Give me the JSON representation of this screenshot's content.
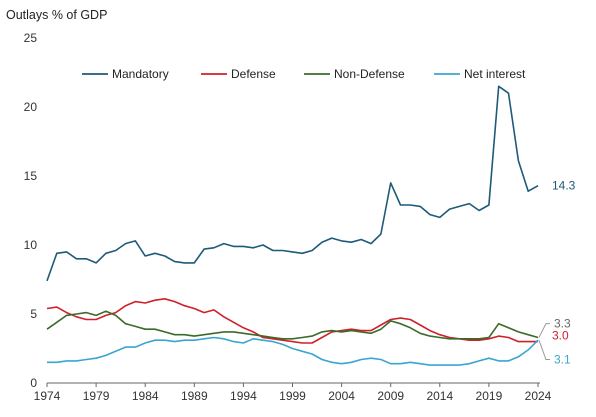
{
  "chart_data": {
    "type": "line",
    "title": "Outlays % of GDP",
    "xlabel": "",
    "ylabel": "",
    "xlim": [
      1974,
      2024
    ],
    "ylim": [
      0,
      25
    ],
    "x_ticks": [
      1974,
      1979,
      1984,
      1989,
      1994,
      1999,
      2004,
      2009,
      2014,
      2019,
      2024
    ],
    "y_ticks": [
      0,
      5,
      10,
      15,
      20,
      25
    ],
    "grid": false,
    "legend_position": "top",
    "x": [
      1974,
      1975,
      1976,
      1977,
      1978,
      1979,
      1980,
      1981,
      1982,
      1983,
      1984,
      1985,
      1986,
      1987,
      1988,
      1989,
      1990,
      1991,
      1992,
      1993,
      1994,
      1995,
      1996,
      1997,
      1998,
      1999,
      2000,
      2001,
      2002,
      2003,
      2004,
      2005,
      2006,
      2007,
      2008,
      2009,
      2010,
      2011,
      2012,
      2013,
      2014,
      2015,
      2016,
      2017,
      2018,
      2019,
      2020,
      2021,
      2022,
      2023,
      2024
    ],
    "series": [
      {
        "name": "Mandatory",
        "color": "#1f5a7a",
        "end_label": "14.3",
        "values": [
          7.4,
          9.4,
          9.5,
          9.0,
          9.0,
          8.7,
          9.4,
          9.6,
          10.1,
          10.3,
          9.2,
          9.4,
          9.2,
          8.8,
          8.7,
          8.7,
          9.7,
          9.8,
          10.1,
          9.9,
          9.9,
          9.8,
          10.0,
          9.6,
          9.6,
          9.5,
          9.4,
          9.6,
          10.2,
          10.5,
          10.3,
          10.2,
          10.4,
          10.1,
          10.8,
          14.5,
          12.9,
          12.9,
          12.8,
          12.2,
          12.0,
          12.6,
          12.8,
          13.0,
          12.5,
          12.9,
          21.5,
          21.0,
          16.1,
          13.9,
          14.3
        ]
      },
      {
        "name": "Defense",
        "color": "#d0202a",
        "end_label": "3.0",
        "values": [
          5.4,
          5.5,
          5.1,
          4.8,
          4.6,
          4.6,
          4.9,
          5.1,
          5.6,
          5.9,
          5.8,
          6.0,
          6.1,
          5.9,
          5.6,
          5.4,
          5.1,
          5.3,
          4.8,
          4.4,
          4.0,
          3.7,
          3.3,
          3.2,
          3.1,
          3.0,
          2.9,
          2.9,
          3.3,
          3.7,
          3.8,
          3.9,
          3.8,
          3.8,
          4.2,
          4.6,
          4.7,
          4.6,
          4.2,
          3.8,
          3.5,
          3.3,
          3.2,
          3.1,
          3.1,
          3.2,
          3.4,
          3.3,
          3.0,
          3.0,
          3.0
        ]
      },
      {
        "name": "Non-Defense",
        "color": "#3a6b2a",
        "end_label": "3.3",
        "values": [
          3.9,
          4.4,
          4.9,
          5.0,
          5.1,
          4.9,
          5.2,
          4.9,
          4.3,
          4.1,
          3.9,
          3.9,
          3.7,
          3.5,
          3.5,
          3.4,
          3.5,
          3.6,
          3.7,
          3.7,
          3.6,
          3.5,
          3.4,
          3.3,
          3.2,
          3.2,
          3.3,
          3.4,
          3.7,
          3.8,
          3.7,
          3.8,
          3.7,
          3.6,
          3.9,
          4.5,
          4.3,
          4.0,
          3.6,
          3.4,
          3.3,
          3.2,
          3.2,
          3.2,
          3.2,
          3.3,
          4.3,
          4.0,
          3.7,
          3.5,
          3.3
        ]
      },
      {
        "name": "Net interest",
        "color": "#3aa6d0",
        "end_label": "3.1",
        "values": [
          1.5,
          1.5,
          1.6,
          1.6,
          1.7,
          1.8,
          2.0,
          2.3,
          2.6,
          2.6,
          2.9,
          3.1,
          3.1,
          3.0,
          3.1,
          3.1,
          3.2,
          3.3,
          3.2,
          3.0,
          2.9,
          3.2,
          3.1,
          3.0,
          2.8,
          2.5,
          2.3,
          2.1,
          1.7,
          1.5,
          1.4,
          1.5,
          1.7,
          1.8,
          1.7,
          1.4,
          1.4,
          1.5,
          1.4,
          1.3,
          1.3,
          1.3,
          1.3,
          1.4,
          1.6,
          1.8,
          1.6,
          1.6,
          1.9,
          2.4,
          3.1
        ]
      }
    ]
  }
}
